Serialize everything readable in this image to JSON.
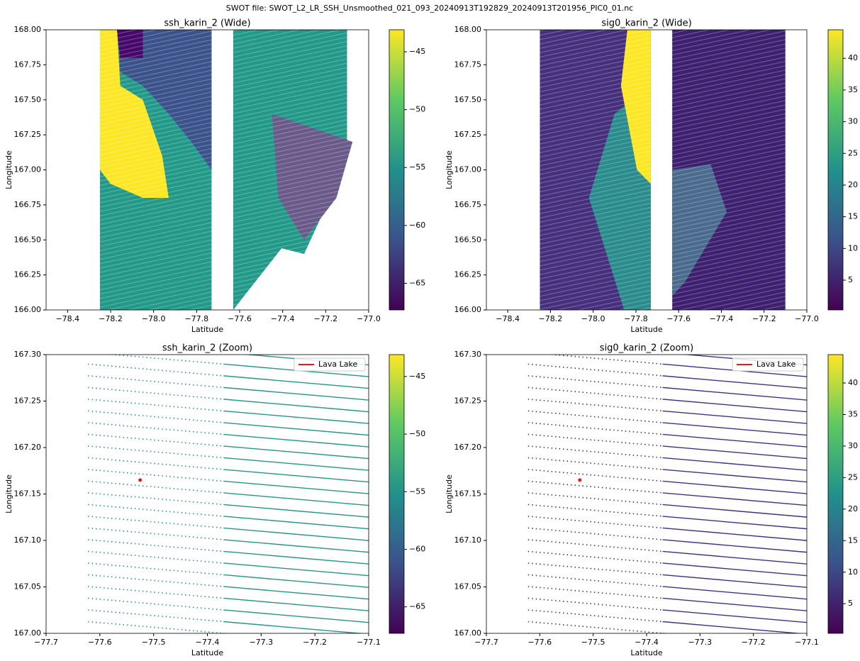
{
  "suptitle": "SWOT file: SWOT_L2_LR_SSH_Unsmoothed_021_093_20240913T192829_20240913T201956_PIC0_01.nc",
  "chart_data": [
    {
      "type": "swath",
      "title": "ssh_karin_2 (Wide)",
      "x_label": "Latitude",
      "y_label": "Longitude",
      "xlim": [
        -78.5,
        -77.0
      ],
      "xticks": [
        {
          "value": -78.4,
          "label": "−78.4"
        },
        {
          "value": -78.2,
          "label": "−78.2"
        },
        {
          "value": -78.0,
          "label": "−78.0"
        },
        {
          "value": -77.8,
          "label": "−77.8"
        },
        {
          "value": -77.6,
          "label": "−77.6"
        },
        {
          "value": -77.4,
          "label": "−77.4"
        },
        {
          "value": -77.2,
          "label": "−77.2"
        },
        {
          "value": -77.0,
          "label": "−77.0"
        }
      ],
      "ylim": [
        166.0,
        168.0
      ],
      "yticks": [
        {
          "value": 166.0,
          "label": "166.00"
        },
        166.25,
        {
          "value": 166.5,
          "label": "166.50"
        },
        166.75,
        {
          "value": 167.0,
          "label": "167.00"
        },
        167.25,
        {
          "value": 167.5,
          "label": "167.50"
        },
        167.75,
        {
          "value": 168.0,
          "label": "168.00"
        }
      ],
      "colormap": "viridis",
      "clim": [
        -67.3,
        -43.1
      ],
      "cticks": [
        {
          "value": -65,
          "label": "−65"
        },
        {
          "value": -60,
          "label": "−60"
        },
        {
          "value": -55,
          "label": "−55"
        },
        {
          "value": -50,
          "label": "−50"
        },
        {
          "value": -45,
          "label": "−45"
        }
      ]
    },
    {
      "type": "swath",
      "title": "sig0_karin_2 (Wide)",
      "x_label": "Latitude",
      "y_label": "Longitude",
      "xlim": [
        -78.5,
        -77.0
      ],
      "xticks": [
        {
          "value": -78.4,
          "label": "−78.4"
        },
        {
          "value": -78.2,
          "label": "−78.2"
        },
        {
          "value": -78.0,
          "label": "−78.0"
        },
        {
          "value": -77.8,
          "label": "−77.8"
        },
        {
          "value": -77.6,
          "label": "−77.6"
        },
        {
          "value": -77.4,
          "label": "−77.4"
        },
        {
          "value": -77.2,
          "label": "−77.2"
        },
        {
          "value": -77.0,
          "label": "−77.0"
        }
      ],
      "ylim": [
        166.0,
        168.0
      ],
      "yticks": [
        {
          "value": 166.0,
          "label": "166.00"
        },
        166.25,
        {
          "value": 166.5,
          "label": "166.50"
        },
        166.75,
        {
          "value": 167.0,
          "label": "167.00"
        },
        167.25,
        {
          "value": 167.5,
          "label": "167.50"
        },
        167.75,
        {
          "value": 168.0,
          "label": "168.00"
        }
      ],
      "colormap": "viridis",
      "clim": [
        0.3,
        44.5
      ],
      "cticks": [
        5,
        10,
        15,
        20,
        25,
        30,
        35,
        40
      ]
    },
    {
      "type": "scatter",
      "title": "ssh_karin_2 (Zoom)",
      "x_label": "Latitude",
      "y_label": "Longitude",
      "xlim": [
        -77.7,
        -77.1
      ],
      "xticks": [
        {
          "value": -77.7,
          "label": "−77.7"
        },
        {
          "value": -77.6,
          "label": "−77.6"
        },
        {
          "value": -77.5,
          "label": "−77.5"
        },
        {
          "value": -77.4,
          "label": "−77.4"
        },
        {
          "value": -77.3,
          "label": "−77.3"
        },
        {
          "value": -77.2,
          "label": "−77.2"
        },
        {
          "value": -77.1,
          "label": "−77.1"
        }
      ],
      "ylim": [
        167.0,
        167.3
      ],
      "yticks": [
        {
          "value": 167.0,
          "label": "167.00"
        },
        167.05,
        {
          "value": 167.1,
          "label": "167.10"
        },
        167.15,
        {
          "value": 167.2,
          "label": "167.20"
        },
        167.25,
        {
          "value": 167.3,
          "label": "167.30"
        }
      ],
      "colormap": "viridis",
      "clim": [
        -67.3,
        -43.1
      ],
      "cticks": [
        {
          "value": -65,
          "label": "−65"
        },
        {
          "value": -60,
          "label": "−60"
        },
        {
          "value": -55,
          "label": "−55"
        },
        {
          "value": -50,
          "label": "−50"
        },
        {
          "value": -45,
          "label": "−45"
        }
      ],
      "legend": "upper right",
      "series": [
        {
          "name": "Lava Lake",
          "color": "#e8191c",
          "x": [
            -77.525
          ],
          "values": [
            167.165
          ]
        }
      ]
    },
    {
      "type": "scatter",
      "title": "sig0_karin_2 (Zoom)",
      "x_label": "Latitude",
      "y_label": "Longitude",
      "xlim": [
        -77.7,
        -77.1
      ],
      "xticks": [
        {
          "value": -77.7,
          "label": "−77.7"
        },
        {
          "value": -77.6,
          "label": "−77.6"
        },
        {
          "value": -77.5,
          "label": "−77.5"
        },
        {
          "value": -77.4,
          "label": "−77.4"
        },
        {
          "value": -77.3,
          "label": "−77.3"
        },
        {
          "value": -77.2,
          "label": "−77.2"
        },
        {
          "value": -77.1,
          "label": "−77.1"
        }
      ],
      "ylim": [
        167.0,
        167.3
      ],
      "yticks": [
        {
          "value": 167.0,
          "label": "167.00"
        },
        167.05,
        {
          "value": 167.1,
          "label": "167.10"
        },
        167.15,
        {
          "value": 167.2,
          "label": "167.20"
        },
        167.25,
        {
          "value": 167.3,
          "label": "167.30"
        }
      ],
      "colormap": "viridis",
      "clim": [
        0.3,
        44.5
      ],
      "cticks": [
        5,
        10,
        15,
        20,
        25,
        30,
        35,
        40
      ],
      "legend": "upper right",
      "series": [
        {
          "name": "Lava Lake",
          "color": "#e8191c",
          "x": [
            -77.525
          ],
          "values": [
            167.165
          ]
        }
      ]
    }
  ]
}
